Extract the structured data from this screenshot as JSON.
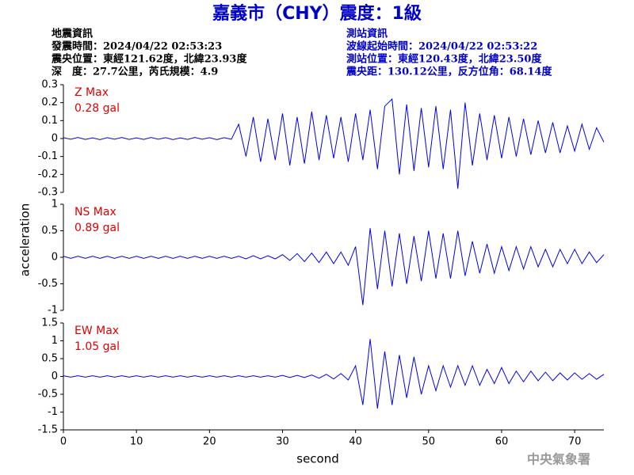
{
  "title": "嘉義市（CHY）震度：1級",
  "info_left": [
    "地震資訊",
    "發震時間：2024/04/22 02:53:23",
    "震央位置：東經121.62度，北緯23.93度",
    "深　度：27.7公里，芮氏規模：4.9"
  ],
  "info_right": [
    "測站資訊",
    "波線起始時間：2024/04/22 02:53:22",
    "測站位置：東經120.43度，北緯23.50度",
    "震央距：130.12公里，反方位角：68.14度"
  ],
  "footer": "中央氣象署",
  "chart_data": [
    {
      "type": "line",
      "max_label": "Z Max",
      "max_value": "0.28 gal",
      "color": "#0000ee",
      "xlim": [
        0,
        74
      ],
      "ylim": [
        -0.3,
        0.3
      ],
      "yticks": [
        0.3,
        0.2,
        0.1,
        0,
        -0.1,
        -0.2,
        -0.3
      ],
      "x": [
        0,
        1,
        2,
        3,
        4,
        5,
        6,
        7,
        8,
        9,
        10,
        11,
        12,
        13,
        14,
        15,
        16,
        17,
        18,
        19,
        20,
        21,
        22,
        23,
        24,
        25,
        26,
        27,
        28,
        29,
        30,
        31,
        32,
        33,
        34,
        35,
        36,
        37,
        38,
        39,
        40,
        41,
        42,
        43,
        44,
        45,
        46,
        47,
        48,
        49,
        50,
        51,
        52,
        53,
        54,
        55,
        56,
        57,
        58,
        59,
        60,
        61,
        62,
        63,
        64,
        65,
        66,
        67,
        68,
        69,
        70,
        71,
        72,
        73,
        74
      ],
      "values": [
        0.005,
        -0.004,
        0.006,
        -0.005,
        0.004,
        -0.006,
        0.005,
        -0.004,
        0.006,
        -0.005,
        0.004,
        -0.005,
        0.006,
        -0.004,
        0.005,
        -0.006,
        0.004,
        -0.005,
        0.006,
        -0.004,
        0.005,
        -0.006,
        0.005,
        -0.004,
        0.08,
        -0.1,
        0.12,
        -0.13,
        0.11,
        -0.12,
        0.14,
        -0.15,
        0.12,
        -0.14,
        0.15,
        -0.12,
        0.13,
        -0.11,
        0.12,
        -0.13,
        0.14,
        -0.12,
        0.16,
        -0.17,
        0.18,
        0.22,
        -0.2,
        0.19,
        -0.18,
        0.17,
        -0.16,
        0.18,
        -0.17,
        0.16,
        -0.28,
        0.2,
        -0.15,
        0.14,
        -0.12,
        0.13,
        -0.11,
        0.12,
        -0.1,
        0.11,
        -0.09,
        0.1,
        -0.08,
        0.09,
        -0.08,
        0.07,
        -0.07,
        0.08,
        -0.06,
        0.06,
        -0.02
      ]
    },
    {
      "type": "line",
      "max_label": "NS Max",
      "max_value": "0.89 gal",
      "color": "#0000ee",
      "y_label": "acceleration",
      "xlim": [
        0,
        74
      ],
      "ylim": [
        -1,
        1
      ],
      "yticks": [
        1,
        0.5,
        0,
        -0.5,
        -1
      ],
      "x": [
        0,
        1,
        2,
        3,
        4,
        5,
        6,
        7,
        8,
        9,
        10,
        11,
        12,
        13,
        14,
        15,
        16,
        17,
        18,
        19,
        20,
        21,
        22,
        23,
        24,
        25,
        26,
        27,
        28,
        29,
        30,
        31,
        32,
        33,
        34,
        35,
        36,
        37,
        38,
        39,
        40,
        41,
        42,
        43,
        44,
        45,
        46,
        47,
        48,
        49,
        50,
        51,
        52,
        53,
        54,
        55,
        56,
        57,
        58,
        59,
        60,
        61,
        62,
        63,
        64,
        65,
        66,
        67,
        68,
        69,
        70,
        71,
        72,
        73,
        74
      ],
      "values": [
        0.02,
        -0.02,
        0.02,
        -0.02,
        0.02,
        -0.02,
        0.02,
        -0.02,
        0.02,
        -0.02,
        0.02,
        -0.02,
        0.02,
        -0.02,
        0.02,
        -0.02,
        0.02,
        -0.02,
        0.02,
        -0.02,
        0.02,
        -0.02,
        0.02,
        -0.02,
        0.02,
        -0.03,
        0.03,
        -0.03,
        0.03,
        -0.03,
        0.05,
        -0.06,
        0.07,
        -0.08,
        0.08,
        -0.1,
        0.1,
        -0.12,
        0.1,
        -0.15,
        0.2,
        -0.9,
        0.55,
        -0.6,
        0.5,
        -0.55,
        0.45,
        -0.5,
        0.4,
        -0.45,
        0.5,
        -0.4,
        0.45,
        -0.4,
        0.5,
        -0.35,
        0.3,
        -0.3,
        0.25,
        -0.3,
        0.2,
        -0.25,
        0.2,
        -0.22,
        0.2,
        -0.18,
        0.15,
        -0.18,
        0.15,
        -0.12,
        0.15,
        -0.12,
        0.1,
        -0.1,
        0.05
      ]
    },
    {
      "type": "line",
      "max_label": "EW Max",
      "max_value": "1.05 gal",
      "color": "#0000ee",
      "x_label": "second",
      "xlim": [
        0,
        74
      ],
      "xticks": [
        0,
        10,
        20,
        30,
        40,
        50,
        60,
        70
      ],
      "ylim": [
        -1.5,
        1.5
      ],
      "yticks": [
        1.5,
        1,
        0.5,
        0,
        -0.5,
        -1,
        -1.5
      ],
      "x": [
        0,
        1,
        2,
        3,
        4,
        5,
        6,
        7,
        8,
        9,
        10,
        11,
        12,
        13,
        14,
        15,
        16,
        17,
        18,
        19,
        20,
        21,
        22,
        23,
        24,
        25,
        26,
        27,
        28,
        29,
        30,
        31,
        32,
        33,
        34,
        35,
        36,
        37,
        38,
        39,
        40,
        41,
        42,
        43,
        44,
        45,
        46,
        47,
        48,
        49,
        50,
        51,
        52,
        53,
        54,
        55,
        56,
        57,
        58,
        59,
        60,
        61,
        62,
        63,
        64,
        65,
        66,
        67,
        68,
        69,
        70,
        71,
        72,
        73,
        74
      ],
      "values": [
        0.02,
        -0.02,
        0.02,
        -0.02,
        0.02,
        -0.02,
        0.02,
        -0.02,
        0.02,
        -0.02,
        0.02,
        -0.02,
        0.02,
        -0.02,
        0.02,
        -0.02,
        0.02,
        -0.02,
        0.02,
        -0.02,
        0.02,
        -0.02,
        0.02,
        -0.02,
        0.02,
        -0.02,
        0.02,
        -0.02,
        0.02,
        -0.02,
        0.03,
        -0.03,
        0.03,
        -0.03,
        0.04,
        -0.05,
        0.06,
        -0.07,
        0.08,
        -0.1,
        0.3,
        -0.8,
        1.05,
        -0.9,
        0.7,
        -0.8,
        0.6,
        -0.6,
        0.55,
        -0.5,
        0.3,
        -0.4,
        0.3,
        -0.3,
        0.3,
        -0.25,
        0.3,
        -0.25,
        0.2,
        -0.2,
        0.25,
        -0.2,
        0.15,
        -0.15,
        0.15,
        -0.12,
        0.12,
        -0.12,
        0.1,
        -0.1,
        0.1,
        -0.08,
        0.08,
        -0.08,
        0.06
      ]
    }
  ]
}
